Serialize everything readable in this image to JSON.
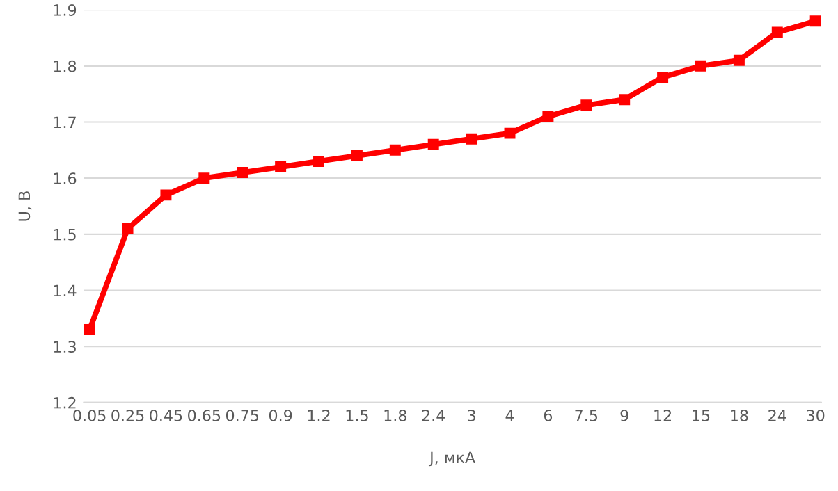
{
  "chart_data": {
    "type": "line",
    "xlabel": "J, мкА",
    "ylabel": "U, В",
    "categories": [
      "0.05",
      "0.25",
      "0.45",
      "0.65",
      "0.75",
      "0.9",
      "1.2",
      "1.5",
      "1.8",
      "2.4",
      "3",
      "4",
      "6",
      "7.5",
      "9",
      "12",
      "15",
      "18",
      "24",
      "30"
    ],
    "series": [
      {
        "color": "#ff0000",
        "values": [
          1.33,
          1.51,
          1.57,
          1.6,
          1.61,
          1.62,
          1.63,
          1.64,
          1.65,
          1.66,
          1.67,
          1.68,
          1.71,
          1.73,
          1.74,
          1.78,
          1.8,
          1.81,
          1.86,
          1.88
        ]
      }
    ],
    "ylim": [
      1.2,
      1.9
    ],
    "yticks": [
      1.2,
      1.3,
      1.4,
      1.5,
      1.6,
      1.7,
      1.8,
      1.9
    ],
    "grid": "y",
    "marker": "square",
    "line_style": "solid",
    "legend": false
  }
}
